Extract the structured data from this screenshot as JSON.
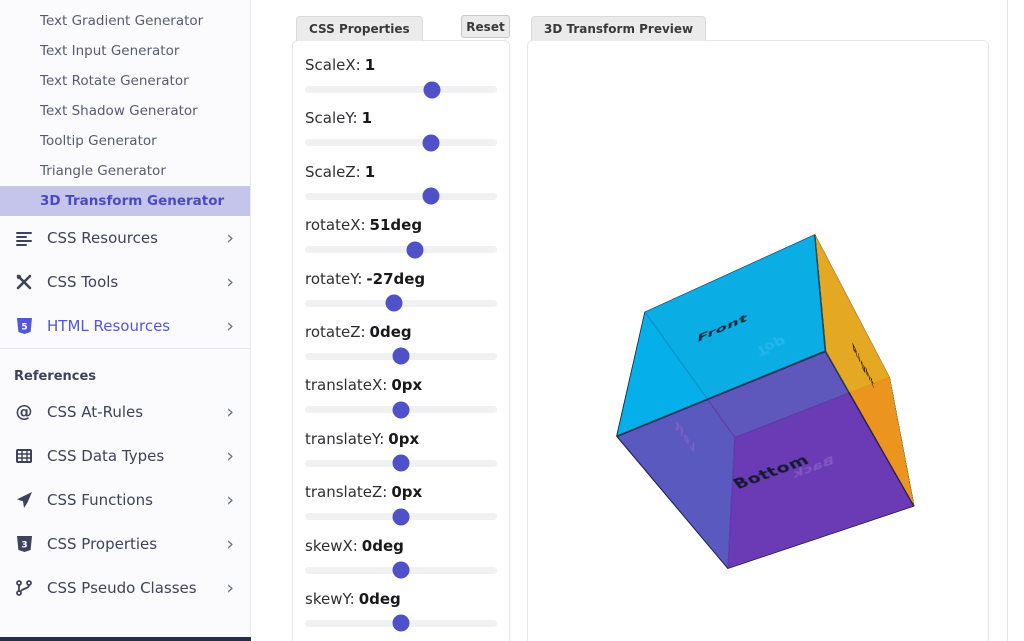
{
  "sidebar": {
    "chevron": "›",
    "sub_items": [
      {
        "label": "Text Gradient Generator",
        "active": false
      },
      {
        "label": "Text Input Generator",
        "active": false
      },
      {
        "label": "Text Rotate Generator",
        "active": false
      },
      {
        "label": "Text Shadow Generator",
        "active": false
      },
      {
        "label": "Tooltip Generator",
        "active": false
      },
      {
        "label": "Triangle Generator",
        "active": false
      },
      {
        "label": "3D Transform Generator",
        "active": true
      }
    ],
    "groups": [
      {
        "icon": "list-lines-icon",
        "label": "CSS Resources",
        "highlighted": false
      },
      {
        "icon": "tools-icon",
        "label": "CSS Tools",
        "highlighted": false
      },
      {
        "icon": "html5-shield-icon",
        "label": "HTML Resources",
        "highlighted": true
      }
    ],
    "references_header": "References",
    "reference_items": [
      {
        "icon": "at-symbol-icon",
        "label": "CSS At-Rules",
        "highlighted": false
      },
      {
        "icon": "table-grid-icon",
        "label": "CSS Data Types",
        "highlighted": false
      },
      {
        "icon": "send-plane-icon",
        "label": "CSS Functions",
        "highlighted": false
      },
      {
        "icon": "css3-shield-icon",
        "label": "CSS Properties",
        "highlighted": false
      },
      {
        "icon": "branch-icon",
        "label": "CSS Pseudo Classes",
        "highlighted": false
      }
    ]
  },
  "properties_panel": {
    "title": "CSS Properties",
    "reset_label": "Reset",
    "sliders": [
      {
        "label": "ScaleX:",
        "value": "1",
        "percent": 66
      },
      {
        "label": "ScaleY:",
        "value": "1",
        "percent": 65.5
      },
      {
        "label": "ScaleZ:",
        "value": "1",
        "percent": 65.5
      },
      {
        "label": "rotateX:",
        "value": "51deg",
        "percent": 57.1
      },
      {
        "label": "rotateY:",
        "value": "-27deg",
        "percent": 46.2
      },
      {
        "label": "rotateZ:",
        "value": "0deg",
        "percent": 50
      },
      {
        "label": "translateX:",
        "value": "0px",
        "percent": 50
      },
      {
        "label": "translateY:",
        "value": "0px",
        "percent": 50
      },
      {
        "label": "translateZ:",
        "value": "0px",
        "percent": 50
      },
      {
        "label": "skewX:",
        "value": "0deg",
        "percent": 50
      },
      {
        "label": "skewY:",
        "value": "0deg",
        "percent": 50
      }
    ]
  },
  "preview_panel": {
    "title": "3D Transform Preview",
    "transform": "scaleX(1) scaleY(1) scaleZ(1) rotateX(51deg) rotateY(-27deg) rotateZ(0deg) translateX(0px) translateY(0px) translateZ(0px) skewX(0deg) skewY(0deg)",
    "cube_faces": [
      {
        "name": "Front",
        "color": "rgba(0,163,233,0.82)",
        "label_color": "#0d2235"
      },
      {
        "name": "Back",
        "color": "rgba(88,24,158,0.85)",
        "label_color": "#e6dcff"
      },
      {
        "name": "Right",
        "color": "rgba(253,160,10,0.88)",
        "label_color": "#33230a"
      },
      {
        "name": "Left",
        "color": "rgba(0,221,229,0.9)",
        "label_color": "#eafcff"
      },
      {
        "name": "Top",
        "color": "rgba(0,210,200,0.8)",
        "label_color": "#c9fff4"
      },
      {
        "name": "Bottom",
        "color": "rgba(104,58,183,0.82)",
        "label_color": "#131a2e"
      }
    ]
  },
  "colors": {
    "accent": "#4f51c8",
    "active_item_bg": "#c5c5eb",
    "active_item_text": "#4a49c5",
    "highlight_nav": "#5156dd",
    "footer_bar": "#272c49"
  }
}
